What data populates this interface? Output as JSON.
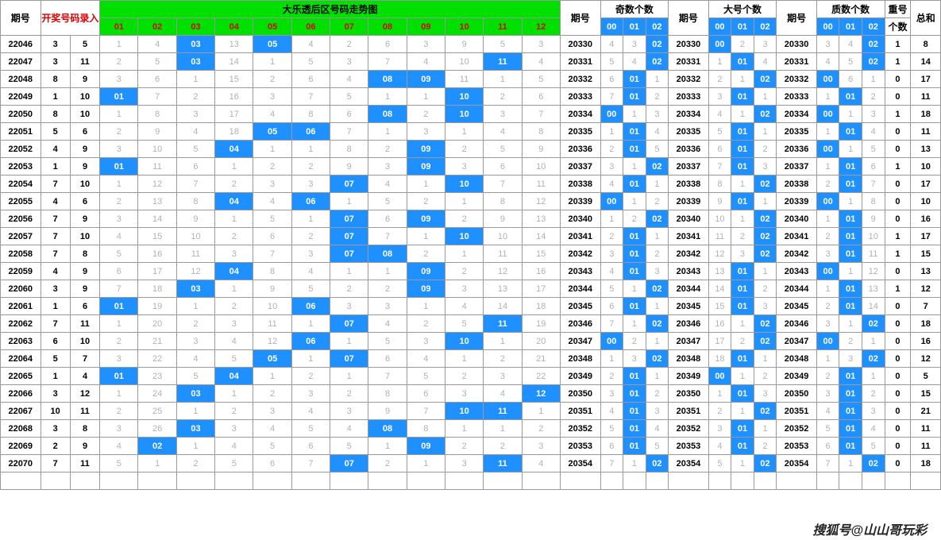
{
  "headers": {
    "period": "期号",
    "entry": "开奖号码录入",
    "trend": "大乐透后区号码走势图",
    "nums": [
      "01",
      "02",
      "03",
      "04",
      "05",
      "06",
      "07",
      "08",
      "09",
      "10",
      "11",
      "12"
    ],
    "period2": "期号",
    "odd": "奇数个数",
    "big": "大号个数",
    "prime": "质数个数",
    "repeat": "重号",
    "sum": "总和",
    "sub": [
      "00",
      "01",
      "02"
    ],
    "rep2": "个数"
  },
  "colors": {
    "hit_bg": "#1e90ff",
    "hit_fg": "#ffffff",
    "green": "#00e000",
    "light": "#b0b0b8",
    "red": "#d00",
    "border": "#999999"
  },
  "rows": [
    {
      "p": "22046",
      "e": [
        3,
        5
      ],
      "t": [
        1,
        4,
        "03",
        13,
        "05",
        4,
        2,
        6,
        3,
        9,
        5,
        3
      ],
      "p2": "20330",
      "odd": [
        4,
        3,
        "02"
      ],
      "big": [
        "00",
        2,
        3
      ],
      "prm": [
        3,
        4,
        "02"
      ],
      "r": 1,
      "s": 8
    },
    {
      "p": "22047",
      "e": [
        3,
        11
      ],
      "t": [
        2,
        5,
        "03",
        14,
        1,
        5,
        3,
        7,
        4,
        10,
        "11",
        4
      ],
      "p2": "20331",
      "odd": [
        5,
        4,
        "02"
      ],
      "big": [
        1,
        "01",
        4
      ],
      "prm": [
        4,
        5,
        "02"
      ],
      "r": 1,
      "s": 14
    },
    {
      "p": "22048",
      "e": [
        8,
        9
      ],
      "t": [
        3,
        6,
        1,
        15,
        2,
        6,
        4,
        "08",
        "09",
        11,
        1,
        5
      ],
      "p2": "20332",
      "odd": [
        6,
        "01",
        1
      ],
      "big": [
        2,
        1,
        "02"
      ],
      "prm": [
        "00",
        6,
        1
      ],
      "r": 0,
      "s": 17
    },
    {
      "p": "22049",
      "e": [
        1,
        10
      ],
      "t": [
        "01",
        7,
        2,
        16,
        3,
        7,
        5,
        1,
        1,
        "10",
        2,
        6
      ],
      "p2": "20333",
      "odd": [
        7,
        "01",
        2
      ],
      "big": [
        3,
        "01",
        1
      ],
      "prm": [
        1,
        "01",
        2
      ],
      "r": 0,
      "s": 11
    },
    {
      "p": "22050",
      "e": [
        8,
        10
      ],
      "t": [
        1,
        8,
        3,
        17,
        4,
        8,
        6,
        "08",
        2,
        "10",
        3,
        7
      ],
      "p2": "20334",
      "odd": [
        "00",
        1,
        3
      ],
      "big": [
        4,
        1,
        "02"
      ],
      "prm": [
        "00",
        1,
        3
      ],
      "r": 1,
      "s": 18
    },
    {
      "p": "22051",
      "e": [
        5,
        6
      ],
      "t": [
        2,
        9,
        4,
        18,
        "05",
        "06",
        7,
        1,
        3,
        1,
        4,
        8
      ],
      "p2": "20335",
      "odd": [
        1,
        "01",
        4
      ],
      "big": [
        5,
        "01",
        1
      ],
      "prm": [
        1,
        "01",
        4
      ],
      "r": 0,
      "s": 11
    },
    {
      "p": "22052",
      "e": [
        4,
        9
      ],
      "t": [
        3,
        10,
        5,
        "04",
        1,
        1,
        8,
        2,
        "09",
        2,
        5,
        9
      ],
      "p2": "20336",
      "odd": [
        2,
        "01",
        5
      ],
      "big": [
        6,
        "01",
        2
      ],
      "prm": [
        "00",
        1,
        5
      ],
      "r": 0,
      "s": 13
    },
    {
      "p": "22053",
      "e": [
        1,
        9
      ],
      "t": [
        "01",
        11,
        6,
        1,
        2,
        2,
        9,
        3,
        "09",
        3,
        6,
        10
      ],
      "p2": "20337",
      "odd": [
        3,
        1,
        "02"
      ],
      "big": [
        7,
        "01",
        3
      ],
      "prm": [
        1,
        "01",
        6
      ],
      "r": 1,
      "s": 10
    },
    {
      "p": "22054",
      "e": [
        7,
        10
      ],
      "t": [
        1,
        12,
        7,
        2,
        3,
        3,
        "07",
        4,
        1,
        "10",
        7,
        11
      ],
      "p2": "20338",
      "odd": [
        4,
        "01",
        1
      ],
      "big": [
        8,
        1,
        "02"
      ],
      "prm": [
        2,
        "01",
        7
      ],
      "r": 0,
      "s": 17
    },
    {
      "p": "22055",
      "e": [
        4,
        6
      ],
      "t": [
        2,
        13,
        8,
        "04",
        4,
        "06",
        1,
        5,
        2,
        1,
        8,
        12
      ],
      "p2": "20339",
      "odd": [
        "00",
        1,
        2
      ],
      "big": [
        9,
        "01",
        1
      ],
      "prm": [
        "00",
        1,
        8
      ],
      "r": 0,
      "s": 10
    },
    {
      "p": "22056",
      "e": [
        7,
        9
      ],
      "t": [
        3,
        14,
        9,
        1,
        5,
        1,
        "07",
        6,
        "09",
        2,
        9,
        13
      ],
      "p2": "20340",
      "odd": [
        1,
        2,
        "02"
      ],
      "big": [
        10,
        1,
        "02"
      ],
      "prm": [
        1,
        "01",
        9
      ],
      "r": 0,
      "s": 16
    },
    {
      "p": "22057",
      "e": [
        7,
        10
      ],
      "t": [
        4,
        15,
        10,
        2,
        6,
        2,
        "07",
        7,
        1,
        "10",
        10,
        14
      ],
      "p2": "20341",
      "odd": [
        2,
        "01",
        1
      ],
      "big": [
        11,
        2,
        "02"
      ],
      "prm": [
        2,
        "01",
        10
      ],
      "r": 1,
      "s": 17
    },
    {
      "p": "22058",
      "e": [
        7,
        8
      ],
      "t": [
        5,
        16,
        11,
        3,
        7,
        3,
        "07",
        "08",
        2,
        1,
        11,
        15
      ],
      "p2": "20342",
      "odd": [
        3,
        "01",
        2
      ],
      "big": [
        12,
        3,
        "02"
      ],
      "prm": [
        3,
        "01",
        11
      ],
      "r": 1,
      "s": 15
    },
    {
      "p": "22059",
      "e": [
        4,
        9
      ],
      "t": [
        6,
        17,
        12,
        "04",
        8,
        4,
        1,
        1,
        "09",
        2,
        12,
        16
      ],
      "p2": "20343",
      "odd": [
        4,
        "01",
        3
      ],
      "big": [
        13,
        "01",
        1
      ],
      "prm": [
        "00",
        1,
        12
      ],
      "r": 0,
      "s": 13
    },
    {
      "p": "22060",
      "e": [
        3,
        9
      ],
      "t": [
        7,
        18,
        "03",
        1,
        9,
        5,
        2,
        2,
        "09",
        3,
        13,
        17
      ],
      "p2": "20344",
      "odd": [
        5,
        1,
        "02"
      ],
      "big": [
        14,
        "01",
        2
      ],
      "prm": [
        1,
        "01",
        13
      ],
      "r": 1,
      "s": 12
    },
    {
      "p": "22061",
      "e": [
        1,
        6
      ],
      "t": [
        "01",
        19,
        1,
        2,
        10,
        "06",
        3,
        3,
        1,
        4,
        14,
        18
      ],
      "p2": "20345",
      "odd": [
        6,
        "01",
        1
      ],
      "big": [
        15,
        "01",
        3
      ],
      "prm": [
        2,
        "01",
        14
      ],
      "r": 0,
      "s": 7
    },
    {
      "p": "22062",
      "e": [
        7,
        11
      ],
      "t": [
        1,
        20,
        2,
        3,
        11,
        1,
        "07",
        4,
        2,
        5,
        "11",
        19
      ],
      "p2": "20346",
      "odd": [
        7,
        1,
        "02"
      ],
      "big": [
        16,
        1,
        "02"
      ],
      "prm": [
        3,
        1,
        "02"
      ],
      "r": 0,
      "s": 18
    },
    {
      "p": "22063",
      "e": [
        6,
        10
      ],
      "t": [
        2,
        21,
        3,
        4,
        12,
        "06",
        1,
        5,
        3,
        "10",
        1,
        20
      ],
      "p2": "20347",
      "odd": [
        "00",
        2,
        1
      ],
      "big": [
        17,
        2,
        "02"
      ],
      "prm": [
        "00",
        2,
        1
      ],
      "r": 0,
      "s": 16
    },
    {
      "p": "22064",
      "e": [
        5,
        7
      ],
      "t": [
        3,
        22,
        4,
        5,
        "05",
        1,
        "07",
        6,
        4,
        1,
        2,
        21
      ],
      "p2": "20348",
      "odd": [
        1,
        3,
        "02"
      ],
      "big": [
        18,
        "01",
        1
      ],
      "prm": [
        1,
        3,
        "02"
      ],
      "r": 0,
      "s": 12
    },
    {
      "p": "22065",
      "e": [
        1,
        4
      ],
      "t": [
        "01",
        23,
        5,
        "04",
        1,
        2,
        1,
        7,
        5,
        2,
        3,
        22
      ],
      "p2": "20349",
      "odd": [
        2,
        "01",
        1
      ],
      "big": [
        "00",
        1,
        2
      ],
      "prm": [
        2,
        "01",
        1
      ],
      "r": 0,
      "s": 5
    },
    {
      "p": "22066",
      "e": [
        3,
        12
      ],
      "t": [
        1,
        24,
        "03",
        1,
        2,
        3,
        2,
        8,
        6,
        3,
        4,
        "12"
      ],
      "p2": "20350",
      "odd": [
        3,
        "01",
        2
      ],
      "big": [
        1,
        "01",
        3
      ],
      "prm": [
        3,
        "01",
        2
      ],
      "r": 0,
      "s": 15
    },
    {
      "p": "22067",
      "e": [
        10,
        11
      ],
      "t": [
        2,
        25,
        1,
        2,
        3,
        4,
        3,
        9,
        7,
        "10",
        "11",
        1
      ],
      "p2": "20351",
      "odd": [
        4,
        "01",
        3
      ],
      "big": [
        2,
        1,
        "02"
      ],
      "prm": [
        4,
        "01",
        3
      ],
      "r": 0,
      "s": 21
    },
    {
      "p": "22068",
      "e": [
        3,
        8
      ],
      "t": [
        3,
        26,
        "03",
        3,
        4,
        5,
        4,
        "08",
        8,
        1,
        1,
        2
      ],
      "p2": "20352",
      "odd": [
        5,
        "01",
        4
      ],
      "big": [
        3,
        "01",
        1
      ],
      "prm": [
        5,
        "01",
        4
      ],
      "r": 0,
      "s": 11
    },
    {
      "p": "22069",
      "e": [
        2,
        9
      ],
      "t": [
        4,
        "02",
        1,
        4,
        5,
        6,
        5,
        1,
        "09",
        2,
        2,
        3
      ],
      "p2": "20353",
      "odd": [
        6,
        "01",
        5
      ],
      "big": [
        4,
        "01",
        2
      ],
      "prm": [
        6,
        "01",
        5
      ],
      "r": 0,
      "s": 11
    },
    {
      "p": "22070",
      "e": [
        7,
        11
      ],
      "t": [
        5,
        1,
        2,
        5,
        6,
        7,
        "07",
        2,
        1,
        3,
        "11",
        4
      ],
      "p2": "20354",
      "odd": [
        7,
        1,
        "02"
      ],
      "big": [
        5,
        1,
        "02"
      ],
      "prm": [
        7,
        1,
        "02"
      ],
      "r": 0,
      "s": 18
    }
  ],
  "watermark": "搜狐号@山山哥玩彩"
}
